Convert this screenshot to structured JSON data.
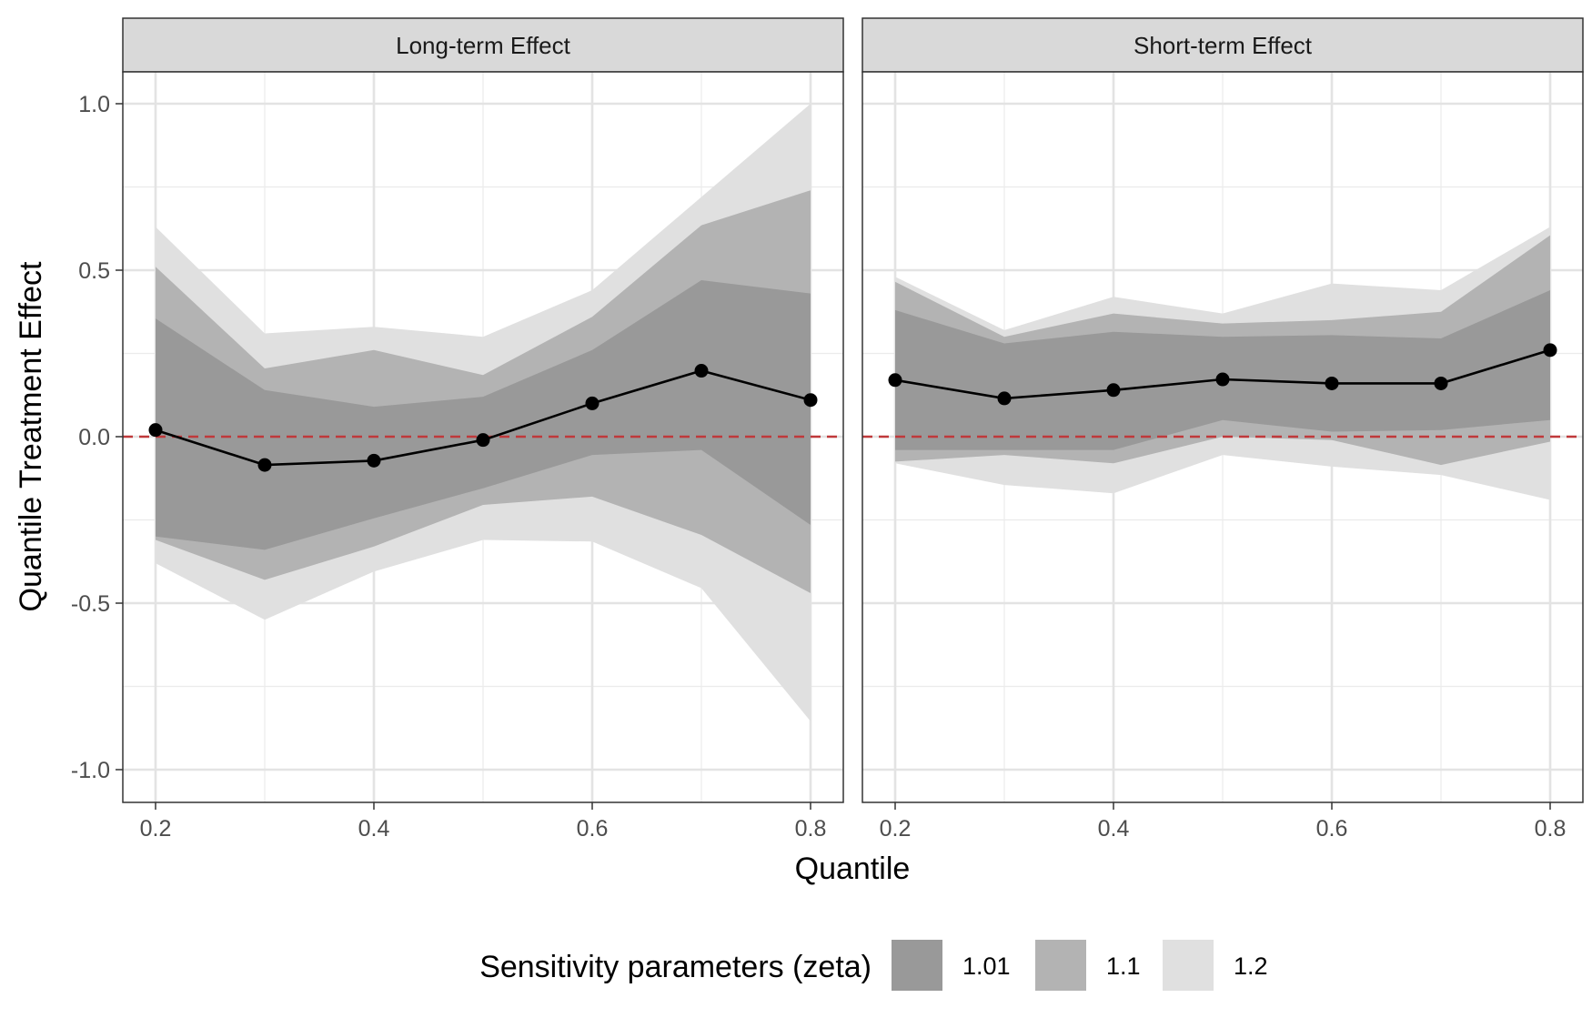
{
  "chart_data": {
    "type": "line",
    "xlabel": "Quantile",
    "ylabel": "Quantile Treatment Effect",
    "xlim": [
      0.2,
      0.8
    ],
    "ylim": [
      -1.0,
      1.0
    ],
    "x_ticks": [
      "0.2",
      "0.4",
      "0.6",
      "0.8"
    ],
    "y_ticks": [
      "-1.0",
      "-0.5",
      "0.0",
      "0.5",
      "1.0"
    ],
    "reference_line": {
      "y": 0.0,
      "style": "dashed",
      "color": "#c0393b"
    },
    "legend": {
      "title": "Sensitivity parameters (zeta)",
      "position": "bottom",
      "items": [
        {
          "label": "1.01",
          "color": "#999999"
        },
        {
          "label": "1.1",
          "color": "#b3b3b3"
        },
        {
          "label": "1.2",
          "color": "#e0e0e0"
        }
      ]
    },
    "panels": [
      {
        "title": "Long-term Effect",
        "x": [
          0.2,
          0.3,
          0.4,
          0.5,
          0.6,
          0.7,
          0.8
        ],
        "estimate": [
          0.02,
          -0.085,
          -0.072,
          -0.01,
          0.1,
          0.198,
          0.11
        ],
        "bands": [
          {
            "zeta": "1.2",
            "lower": [
              -0.38,
              -0.55,
              -0.405,
              -0.31,
              -0.315,
              -0.455,
              -0.855
            ],
            "upper": [
              0.63,
              0.31,
              0.33,
              0.3,
              0.44,
              0.72,
              1.0
            ]
          },
          {
            "zeta": "1.1",
            "lower": [
              -0.31,
              -0.43,
              -0.33,
              -0.205,
              -0.18,
              -0.295,
              -0.47
            ],
            "upper": [
              0.51,
              0.205,
              0.26,
              0.185,
              0.36,
              0.635,
              0.74
            ]
          },
          {
            "zeta": "1.01",
            "lower": [
              -0.3,
              -0.34,
              -0.245,
              -0.155,
              -0.055,
              -0.04,
              -0.265
            ],
            "upper": [
              0.355,
              0.14,
              0.09,
              0.12,
              0.26,
              0.47,
              0.43
            ]
          }
        ]
      },
      {
        "title": "Short-term Effect",
        "x": [
          0.2,
          0.3,
          0.4,
          0.5,
          0.6,
          0.7,
          0.8
        ],
        "estimate": [
          0.17,
          0.115,
          0.14,
          0.172,
          0.16,
          0.16,
          0.26
        ],
        "bands": [
          {
            "zeta": "1.2",
            "lower": [
              -0.08,
              -0.145,
              -0.17,
              -0.055,
              -0.09,
              -0.115,
              -0.19
            ],
            "upper": [
              0.48,
              0.32,
              0.42,
              0.37,
              0.46,
              0.44,
              0.63
            ]
          },
          {
            "zeta": "1.1",
            "lower": [
              -0.075,
              -0.055,
              -0.08,
              0.0,
              -0.01,
              -0.085,
              -0.015
            ],
            "upper": [
              0.465,
              0.3,
              0.37,
              0.34,
              0.35,
              0.375,
              0.605
            ]
          },
          {
            "zeta": "1.01",
            "lower": [
              -0.04,
              -0.04,
              -0.04,
              0.05,
              0.015,
              0.02,
              0.05
            ],
            "upper": [
              0.38,
              0.28,
              0.315,
              0.3,
              0.305,
              0.295,
              0.44
            ]
          }
        ]
      }
    ]
  }
}
